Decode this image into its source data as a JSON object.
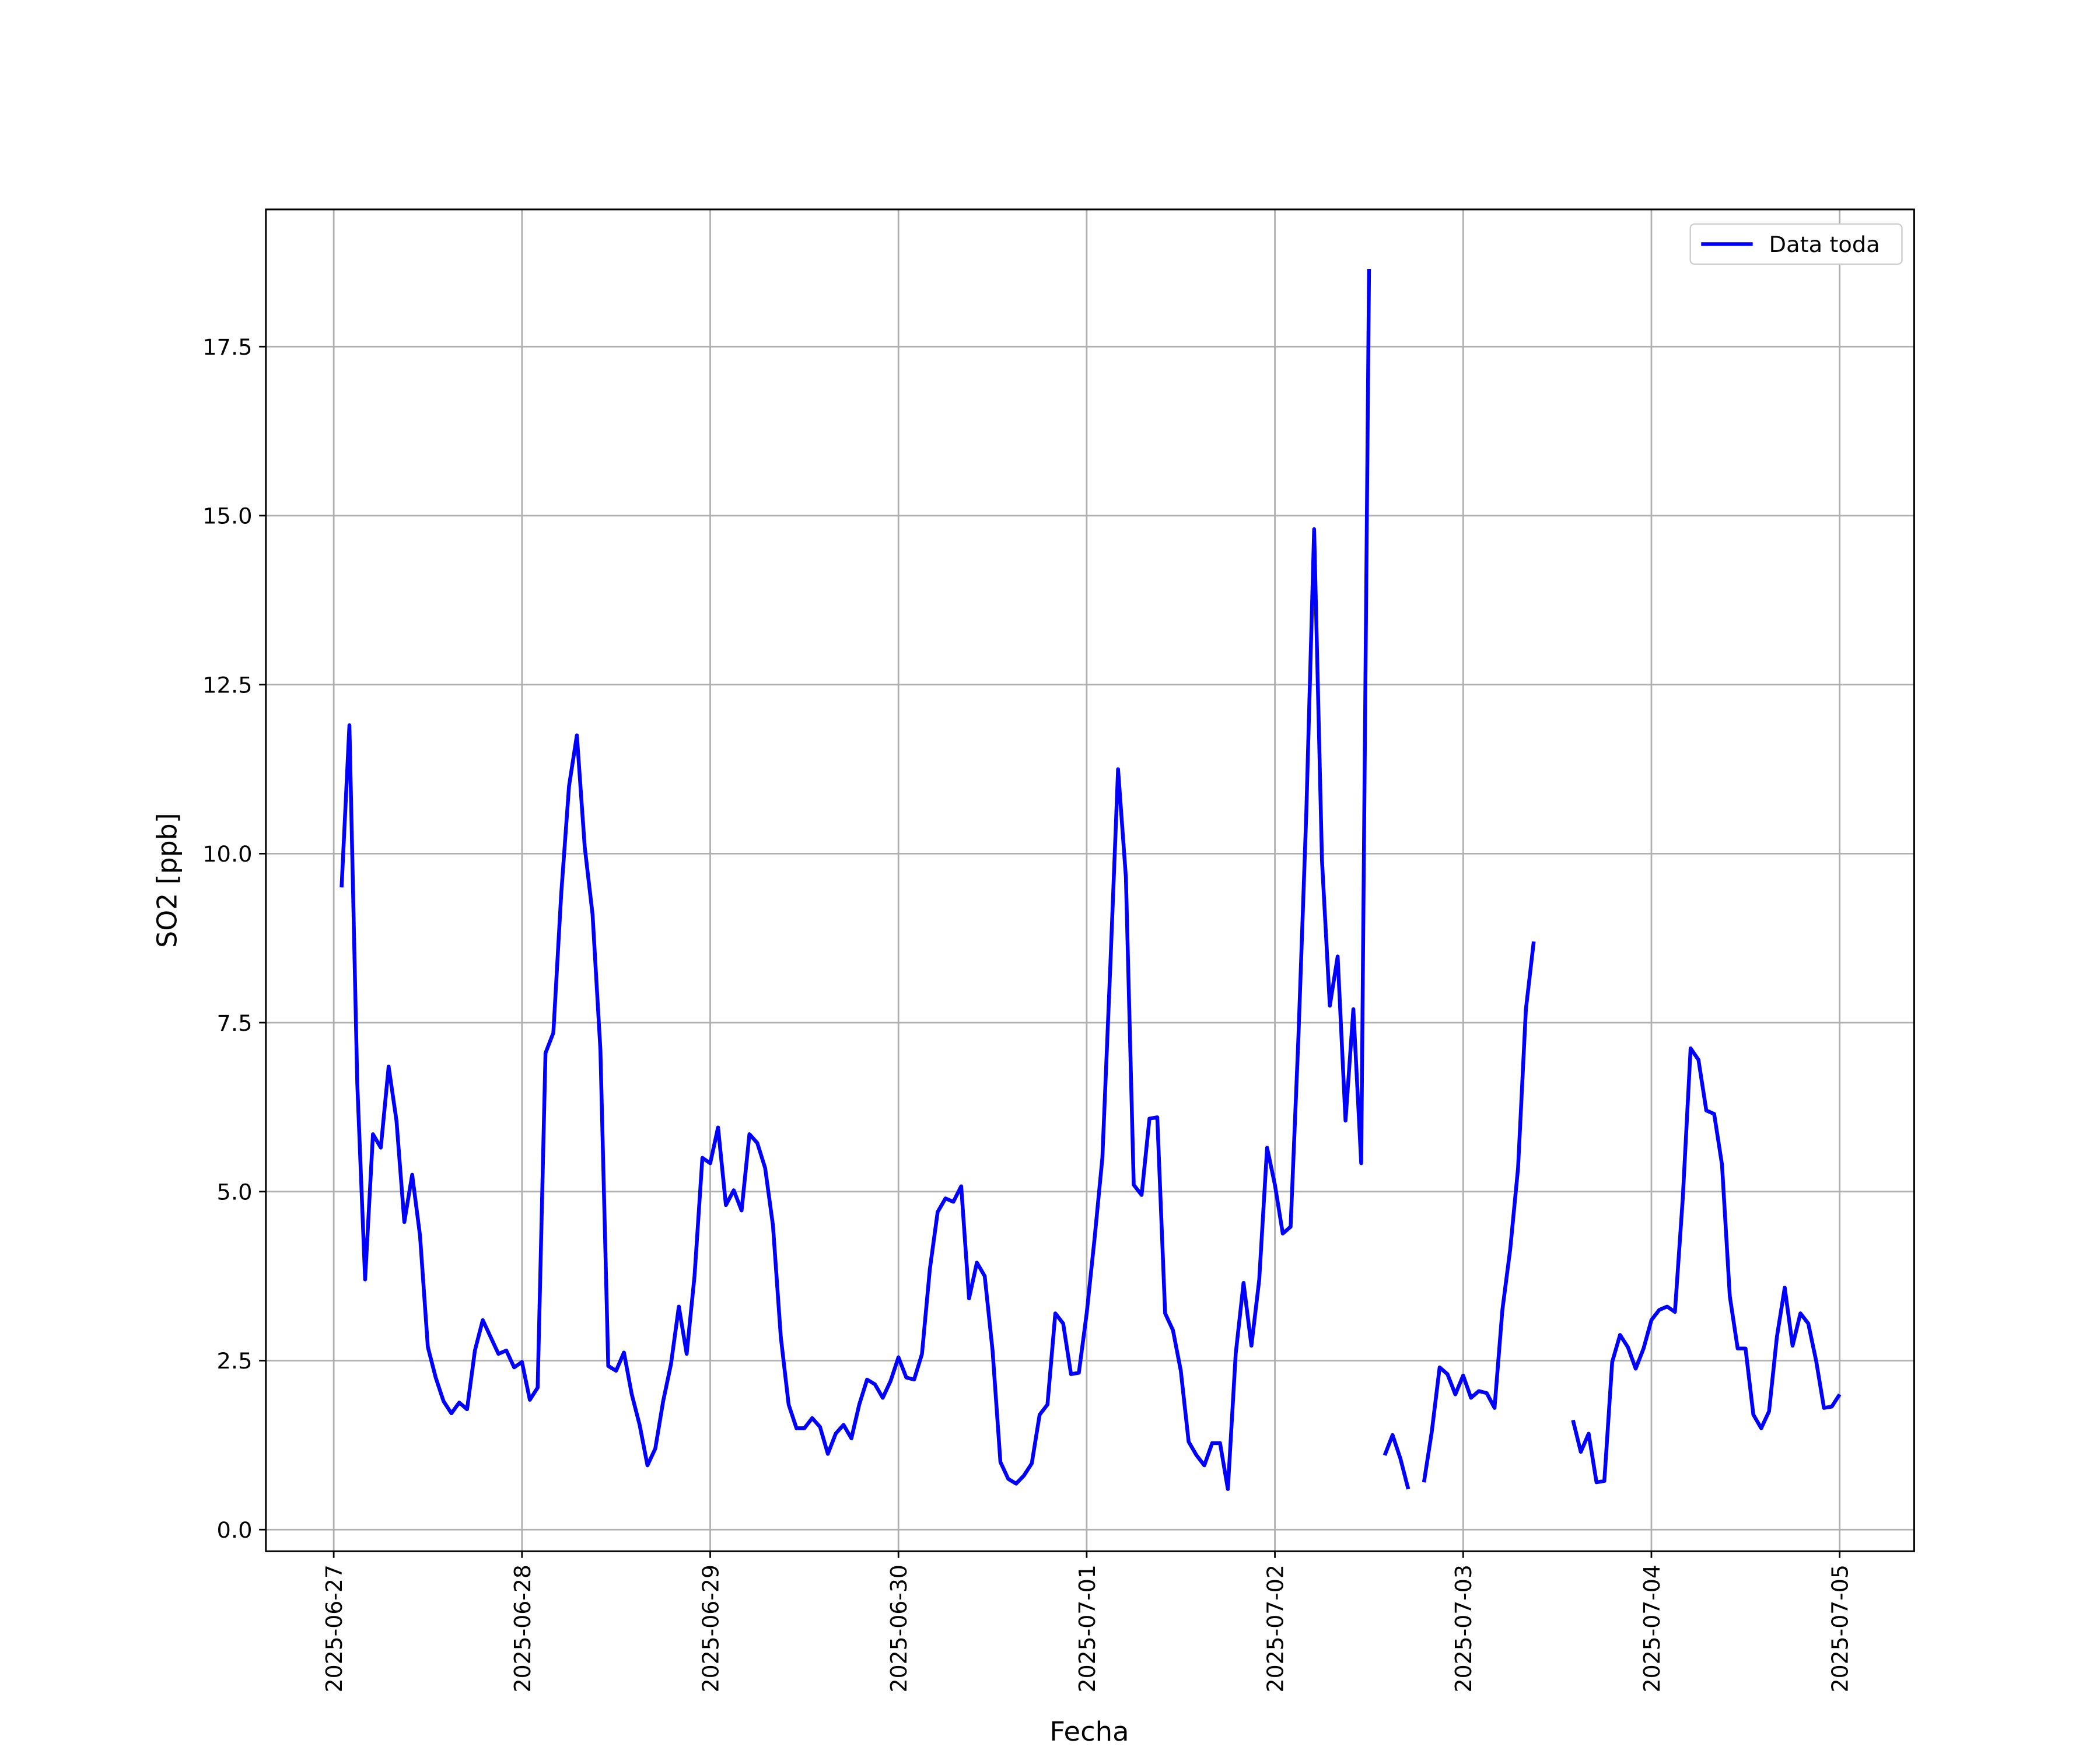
{
  "chart_data": {
    "type": "line",
    "x_label": "Fecha",
    "y_label": "SO2 [ppb]",
    "legend_position": "upper right",
    "grid": true,
    "xlim": [
      -8.65,
      201.5
    ],
    "ylim": [
      -0.32,
      19.53
    ],
    "xticks": [
      {
        "value": 0,
        "label": "2025-06-27"
      },
      {
        "value": 24,
        "label": "2025-06-28"
      },
      {
        "value": 48,
        "label": "2025-06-29"
      },
      {
        "value": 72,
        "label": "2025-06-30"
      },
      {
        "value": 96,
        "label": "2025-07-01"
      },
      {
        "value": 120,
        "label": "2025-07-02"
      },
      {
        "value": 144,
        "label": "2025-07-03"
      },
      {
        "value": 168,
        "label": "2025-07-04"
      },
      {
        "value": 192,
        "label": "2025-07-05"
      }
    ],
    "yticks": [
      {
        "value": 0,
        "label": "0.0"
      },
      2.5,
      {
        "value": 5,
        "label": "5.0"
      },
      7.5,
      {
        "value": 10,
        "label": "10.0"
      },
      12.5,
      {
        "value": 15,
        "label": "15.0"
      },
      17.5
    ],
    "x": [
      1,
      2,
      3,
      4,
      5,
      6,
      7,
      8,
      9,
      10,
      11,
      12,
      13,
      14,
      15,
      16,
      17,
      18,
      19,
      20,
      21,
      22,
      23,
      24,
      25,
      26,
      27,
      28,
      29,
      30,
      31,
      32,
      33,
      34,
      35,
      36,
      37,
      38,
      39,
      40,
      41,
      42,
      43,
      44,
      45,
      46,
      47,
      48,
      49,
      50,
      51,
      52,
      53,
      54,
      55,
      56,
      57,
      58,
      59,
      60,
      61,
      62,
      63,
      64,
      65,
      66,
      67,
      68,
      69,
      70,
      71,
      72,
      73,
      74,
      75,
      76,
      77,
      78,
      79,
      80,
      81,
      82,
      83,
      84,
      85,
      86,
      87,
      88,
      89,
      90,
      91,
      92,
      93,
      94,
      95,
      96,
      97,
      98,
      99,
      100,
      101,
      102,
      103,
      104,
      105,
      106,
      107,
      108,
      109,
      110,
      111,
      112,
      113,
      114,
      115,
      116,
      117,
      118,
      119,
      120,
      121,
      122,
      123,
      124,
      125,
      126,
      127,
      128,
      129,
      130,
      131,
      132,
      133,
      134,
      135,
      136,
      137,
      138,
      139,
      140,
      141,
      142,
      143,
      144,
      145,
      146,
      147,
      148,
      149,
      150,
      151,
      152,
      153,
      154,
      155,
      156,
      157,
      158,
      159,
      160,
      161,
      162,
      163,
      164,
      165,
      166,
      167,
      168,
      169,
      170,
      171,
      172,
      173,
      174,
      175,
      176,
      177,
      178,
      179,
      180,
      181,
      182,
      183,
      184,
      185,
      186,
      187,
      188,
      189,
      190,
      191,
      192
    ],
    "series": [
      {
        "name": "Data toda",
        "color": "#0000ff",
        "values": [
          9.5,
          11.9,
          6.6,
          3.7,
          5.85,
          5.65,
          6.85,
          6.05,
          4.55,
          5.25,
          4.35,
          2.7,
          2.25,
          1.9,
          1.72,
          1.88,
          1.78,
          2.65,
          3.1,
          2.85,
          2.6,
          2.65,
          2.4,
          2.48,
          1.92,
          2.1,
          7.05,
          7.35,
          9.4,
          11.0,
          11.75,
          10.1,
          9.1,
          7.1,
          2.42,
          2.35,
          2.62,
          2.0,
          1.55,
          0.95,
          1.2,
          1.9,
          2.45,
          3.3,
          2.6,
          3.75,
          5.5,
          5.42,
          5.95,
          4.8,
          5.02,
          4.72,
          5.85,
          5.72,
          5.35,
          4.5,
          2.85,
          1.85,
          1.5,
          1.5,
          1.65,
          1.52,
          1.12,
          1.42,
          1.55,
          1.35,
          1.85,
          2.22,
          2.15,
          1.95,
          2.2,
          2.55,
          2.25,
          2.22,
          2.6,
          3.85,
          4.7,
          4.9,
          4.85,
          5.08,
          3.42,
          3.95,
          3.75,
          2.65,
          1.0,
          0.75,
          0.68,
          0.8,
          0.98,
          1.7,
          1.85,
          3.2,
          3.05,
          2.3,
          2.32,
          3.2,
          4.3,
          5.5,
          8.3,
          11.25,
          9.65,
          5.1,
          4.95,
          6.08,
          6.1,
          3.2,
          2.95,
          2.35,
          1.3,
          1.1,
          0.95,
          1.28,
          1.28,
          0.6,
          2.6,
          3.65,
          2.72,
          3.7,
          5.65,
          5.1,
          4.38,
          4.48,
          7.3,
          10.6,
          14.8,
          9.9,
          7.75,
          8.48,
          6.05,
          7.7,
          5.42,
          18.65,
          null,
          1.1,
          1.4,
          1.05,
          0.6,
          null,
          0.7,
          1.45,
          2.4,
          2.3,
          2.0,
          2.28,
          1.95,
          2.05,
          2.02,
          1.8,
          3.25,
          4.15,
          5.35,
          7.7,
          8.7,
          null,
          null,
          null,
          null,
          1.62,
          1.15,
          1.42,
          0.7,
          0.72,
          2.48,
          2.88,
          2.7,
          2.38,
          2.68,
          3.1,
          3.25,
          3.3,
          3.22,
          4.9,
          7.12,
          6.95,
          6.2,
          6.15,
          5.4,
          3.45,
          2.68,
          2.68,
          1.7,
          1.5,
          1.75,
          2.85,
          3.58,
          2.72,
          3.2,
          3.05,
          2.5,
          1.8,
          1.82,
          2.0
        ]
      }
    ]
  }
}
